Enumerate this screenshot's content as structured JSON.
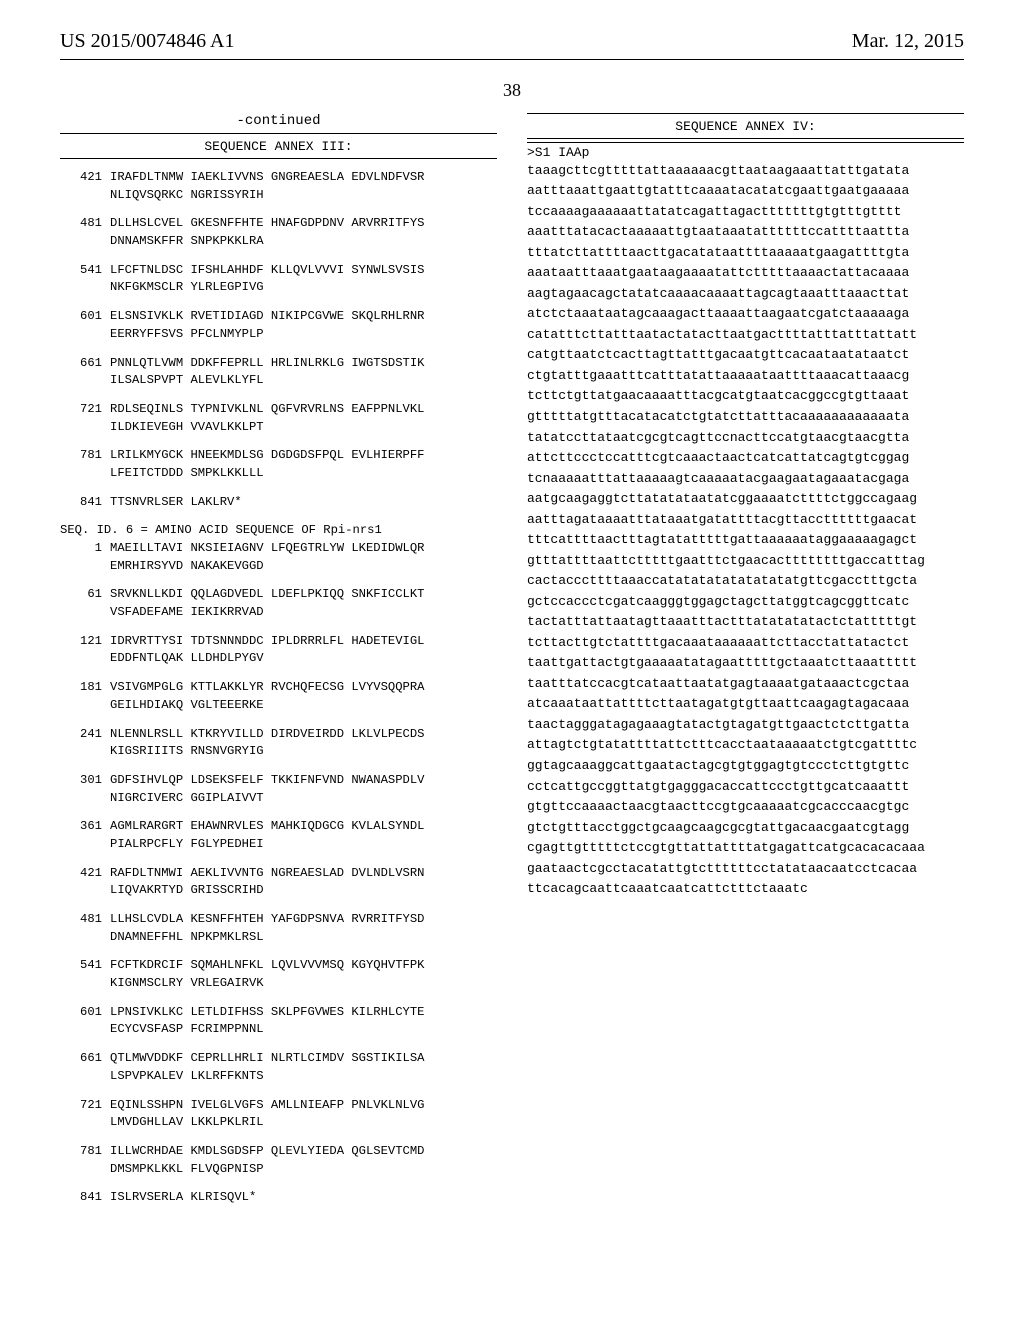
{
  "header": {
    "left": "US 2015/0074846 A1",
    "right": "Mar. 12, 2015",
    "page_number": "38"
  },
  "left": {
    "continued": "-continued",
    "annex_title": "SEQUENCE ANNEX III:",
    "blocks": [
      {
        "num": "421",
        "l1": "IRAFDLTNMW IAEKLIVVNS GNGREAESLA EDVLNDFVSR",
        "l2": "NLIQVSQRKC NGRISSYRIH"
      },
      {
        "num": "481",
        "l1": "DLLHSLCVEL GKESNFFHTE HNAFGDPDNV ARVRRITFYS",
        "l2": "DNNAMSKFFR SNPKPKKLRA"
      },
      {
        "num": "541",
        "l1": "LFCFTNLDSC IFSHLAHHDF KLLQVLVVVI SYNWLSVSIS",
        "l2": "NKFGKMSCLR YLRLEGPIVG"
      },
      {
        "num": "601",
        "l1": "ELSNSIVKLK RVETIDIAGD NIKIPCGVWE SKQLRHLRNR",
        "l2": "EERRYFFSVS PFCLNMYPLP"
      },
      {
        "num": "661",
        "l1": "PNNLQTLVWM DDKFFEPRLL HRLINLRKLG IWGTSDSTIK",
        "l2": "ILSALSPVPT ALEVLKLYFL"
      },
      {
        "num": "721",
        "l1": "RDLSEQINLS TYPNIVKLNL QGFVRVRLNS EAFPPNLVKL",
        "l2": "ILDKIEVEGH VVAVLKKLPT"
      },
      {
        "num": "781",
        "l1": "LRILKMYGCK HNEEKMDLSG DGDGDSFPQL EVLHIERPFF",
        "l2": "LFEITCTDDD SMPKLKKLLL"
      },
      {
        "num": "841",
        "l1": "TTSNVRLSER LAKLRV*",
        "l2": ""
      }
    ],
    "seq_header": "SEQ. ID. 6 = AMINO ACID SEQUENCE OF Rpi-nrs1",
    "blocks2": [
      {
        "num": "1",
        "l1": "MAEILLTAVI NKSIEIAGNV LFQEGTRLYW LKEDIDWLQR",
        "l2": "EMRHIRSYVD NAKAKEVGGD"
      },
      {
        "num": "61",
        "l1": "SRVKNLLKDI QQLAGDVEDL LDEFLPKIQQ SNKFICCLKT",
        "l2": "VSFADEFAME IEKIKRRVAD"
      },
      {
        "num": "121",
        "l1": "IDRVRTTYSI TDTSNNNDDC IPLDRRRLFL HADETEVIGL",
        "l2": "EDDFNTLQAK LLDHDLPYGV"
      },
      {
        "num": "181",
        "l1": "VSIVGMPGLG KTTLAKKLYR RVCHQFECSG LVYVSQQPRA",
        "l2": "GEILHDIAKQ VGLTEEERKE"
      },
      {
        "num": "241",
        "l1": "NLENNLRSLL KTKRYVILLD DIRDVEIRDD LKLVLPECDS",
        "l2": "KIGSRIIITS RNSNVGRYIG"
      },
      {
        "num": "301",
        "l1": "GDFSIHVLQP LDSEKSFELF TKKIFNFVND NWANASPDLV",
        "l2": "NIGRCIVERC GGIPLAIVVT"
      },
      {
        "num": "361",
        "l1": "AGMLRARGRT EHAWNRVLES MAHKIQDGCG KVLALSYNDL",
        "l2": "PIALRPCFLY FGLYPEDHEI"
      },
      {
        "num": "421",
        "l1": "RAFDLTNMWI AEKLIVVNTG NGREAESLAD DVLNDLVSRN",
        "l2": "LIQVAKRTYD GRISSCRIHD"
      },
      {
        "num": "481",
        "l1": "LLHSLCVDLA KESNFFHTEH YAFGDPSNVA RVRRITFYSD",
        "l2": "DNAMNEFFHL NPKPMKLRSL"
      },
      {
        "num": "541",
        "l1": "FCFTKDRCIF SQMAHLNFKL LQVLVVVMSQ KGYQHVTFPK",
        "l2": "KIGNMSCLRY VRLEGAIRVK"
      },
      {
        "num": "601",
        "l1": "LPNSIVKLKC LETLDIFHSS SKLPFGVWES KILRHLCYTE",
        "l2": "ECYCVSFASP FCRIMPPNNL"
      },
      {
        "num": "661",
        "l1": "QTLMWVDDKF CEPRLLHRLI NLRTLCIMDV SGSTIKILSA",
        "l2": "LSPVPKALEV LKLRFFKNTS"
      },
      {
        "num": "721",
        "l1": "EQINLSSHPN IVELGLVGFS AMLLNIEAFP PNLVKLNLVG",
        "l2": "LMVDGHLLAV LKKLPKLRIL"
      },
      {
        "num": "781",
        "l1": "ILLWCRHDAE KMDLSGDSFP QLEVLYIEDA QGLSEVTCMD",
        "l2": "DMSMPKLKKL FLVQGPNISP"
      },
      {
        "num": "841",
        "l1": "ISLRVSERLA KLRISQVL*",
        "l2": ""
      }
    ]
  },
  "right": {
    "annex_title": "SEQUENCE ANNEX IV:",
    "head": ">S1 IAAp",
    "lines": [
      "taaagcttcgtttttattaaaaaacgttaataagaaattatttgatata",
      "aatttaaattgaattgtatttcaaaatacatatcgaattgaatgaaaaa",
      "tccaaaagaaaaaattatatcagattagactttttttgtgtttgtttt",
      "aaatttatacactaaaaattgtaataaatattttttccattttaattta",
      "tttatcttattttaacttgacatataattttaaaaatgaagattttgta",
      "aaataatttaaatgaataagaaaatattctttttaaaactattacaaaa",
      "aagtagaacagctatatcaaaacaaaattagcagtaaatttaaacttat",
      "atctctaaataatagcaaagacttaaaattaagaatcgatctaaaaaga",
      "catatttcttatttaatactatacttaatgacttttatttatttattatt",
      "catgttaatctcacttagttatttgacaatgttcacaataatataatct",
      "ctgtatttgaaatttcatttatattaaaaataattttaaacattaaacg",
      "tcttctgttatgaacaaaatttacgcatgtaatcacggccgtgttaaat",
      "gtttttatgtttacatacatctgtatcttatttacaaaaaaaaaaaata",
      "tatatccttataatcgcgtcagttccnacttccatgtaacgtaacgtta",
      "attcttccctccatttcgtcaaactaactcatcattatcagtgtcggag",
      "tcnaaaaatttattaaaaagtcaaaaatacgaagaatagaaatacgaga",
      "aatgcaagaggtcttatatataatatcggaaaatcttttctggccagaag",
      "aatttagataaaatttataaatgatattttacgttaccttttttgaacat",
      "tttcattttaactttagtatatttttgattaaaaaataggaaaaagagct",
      "gtttattttaattctttttgaatttctgaacacttttttttgaccatttag",
      "cactacccttttaaaccatatatatatatatatatgttcgacctttgcta",
      "gctccaccctcgatcaagggtggagctagcttatggtcagcggttcatc",
      "tactatttattaatagttaaatttactttatatatatactctatttttgt",
      "tcttacttgtctattttgacaaataaaaaattcttacctattatactct",
      "taattgattactgtgaaaaatatagaatttttgctaaatcttaaattttt",
      "taatttatccacgtcataattaatatgagtaaaatgataaactcgctaa",
      "atcaaataattattttcttaatagatgtgttaattcaagagtagacaaa",
      "taactagggatagagaaagtatactgtagatgttgaactctcttgatta",
      "attagtctgtatattttattctttcacctaataaaaatctgtcgattttc",
      "ggtagcaaaggcattgaatactagcgtgtggagtgtccctcttgtgttc",
      "cctcattgccggttatgtgagggacaccattccctgttgcatcaaattt",
      "gtgttccaaaactaacgtaacttccgtgcaaaaatcgcacccaacgtgc",
      "gtctgtttacctggctgcaagcaagcgcgtattgacaacgaatcgtagg",
      "cgagttgtttttctccgtgttattattttatgagattcatgcacacacaaa",
      "gaataactcgcctacatattgtcttttttcctatataacaatcctcacaa",
      "ttcacagcaattcaaatcaatcattctttctaaatc"
    ]
  }
}
